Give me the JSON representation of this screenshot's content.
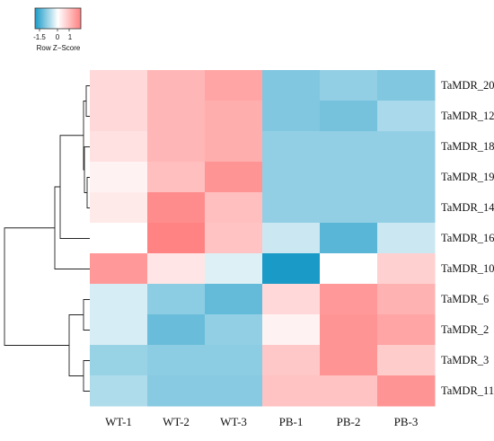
{
  "chart_data": {
    "type": "heatmap",
    "columns": [
      "WT-1",
      "WT-2",
      "WT-3",
      "PB-1",
      "PB-2",
      "PB-3"
    ],
    "rows": [
      "TaMDR_20",
      "TaMDR_12",
      "TaMDR_18",
      "TaMDR_19",
      "TaMDR_14",
      "TaMDR_16",
      "TaMDR_10",
      "TaMDR_6",
      "TaMDR_2",
      "TaMDR_3",
      "TaMDR_11"
    ],
    "values": [
      [
        0.45,
        0.85,
        1.05,
        -1.1,
        -0.95,
        -1.1
      ],
      [
        0.45,
        0.85,
        0.95,
        -1.1,
        -1.2,
        -0.75
      ],
      [
        0.35,
        0.85,
        0.95,
        -0.95,
        -0.95,
        -0.95
      ],
      [
        0.15,
        0.75,
        1.25,
        -0.95,
        -0.95,
        -0.95
      ],
      [
        0.25,
        1.35,
        0.75,
        -0.95,
        -0.95,
        -0.95
      ],
      [
        0.0,
        1.45,
        0.7,
        -0.45,
        -1.45,
        -0.45
      ],
      [
        1.2,
        0.3,
        -0.3,
        -2.0,
        0.0,
        0.55
      ],
      [
        -0.35,
        -1.0,
        -1.35,
        0.45,
        1.2,
        0.9
      ],
      [
        -0.35,
        -1.3,
        -0.95,
        0.15,
        1.25,
        1.05
      ],
      [
        -0.9,
        -1.0,
        -1.0,
        0.65,
        1.25,
        0.6
      ],
      [
        -0.7,
        -1.05,
        -1.05,
        0.7,
        0.7,
        1.25
      ]
    ],
    "color_scale": {
      "low": "#1a9ac6",
      "mid": "#ffffff",
      "high": "#ff7f7f",
      "ticks": [
        "-1.5",
        "0",
        "1"
      ],
      "label": "Row Z−Score"
    },
    "row_dendrogram": true
  }
}
